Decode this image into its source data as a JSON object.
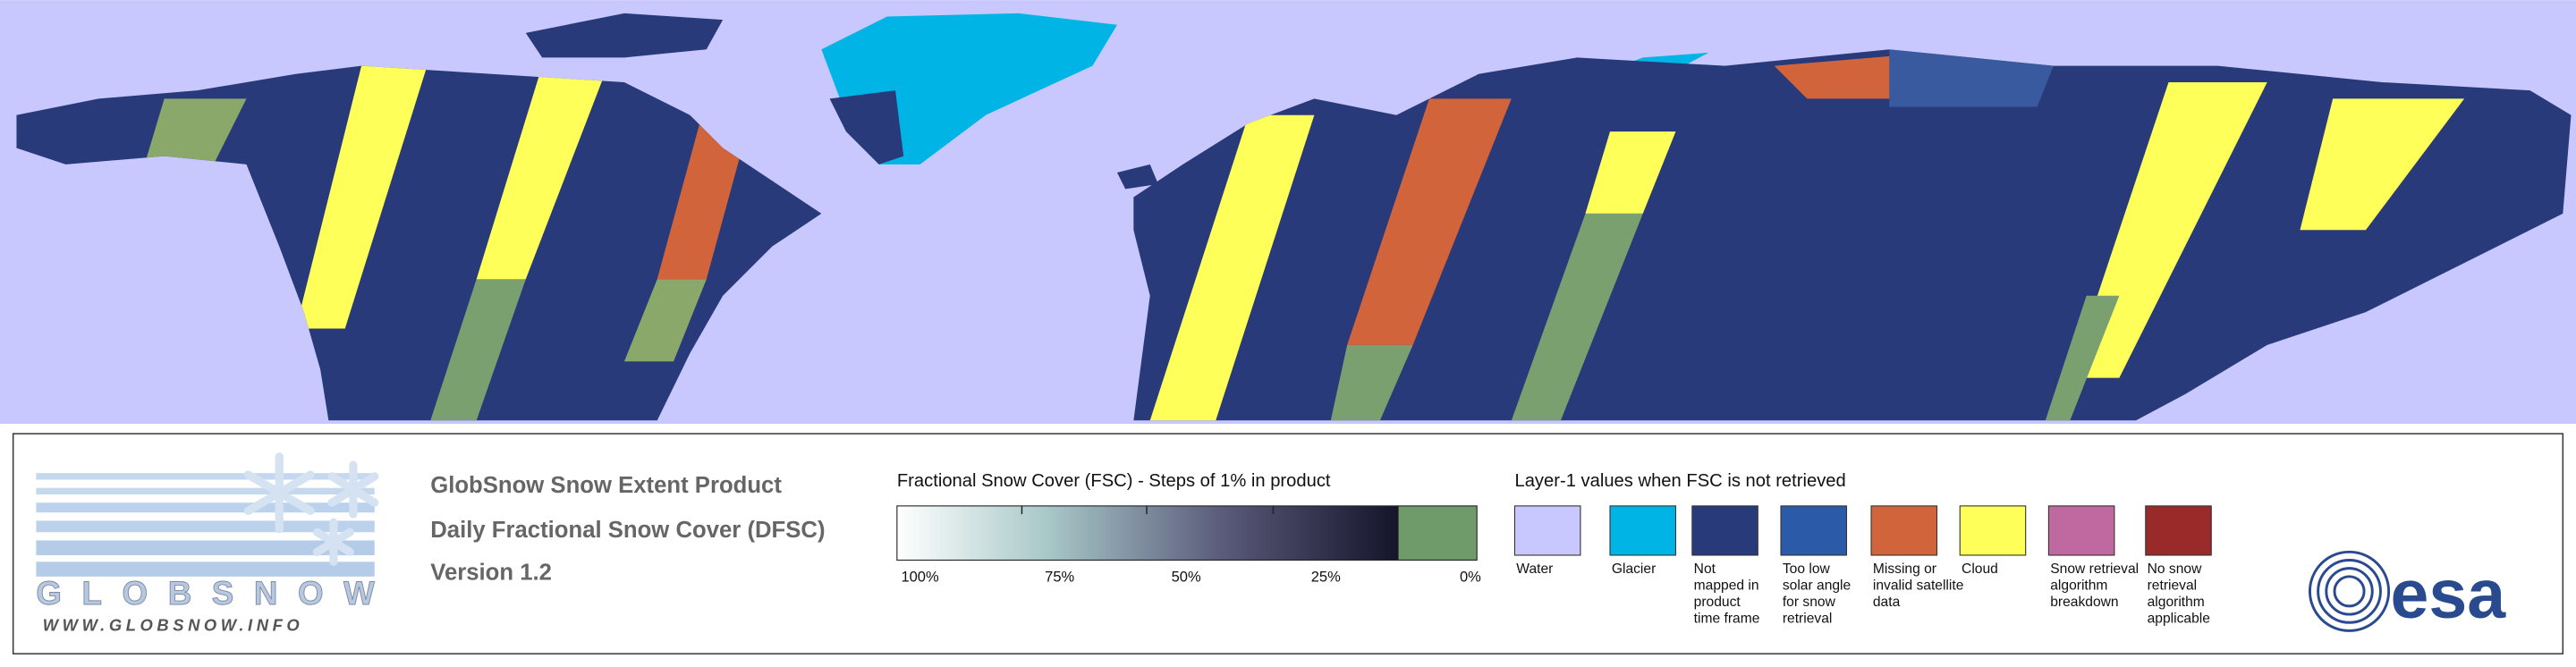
{
  "logo": {
    "name": "GLOBSNOW",
    "url": "WWW.GLOBSNOW.INFO"
  },
  "header": {
    "lines": [
      "GlobSnow Snow Extent Product",
      "Daily Fractional Snow Cover (DFSC)",
      "Version 1.2"
    ]
  },
  "colorbar": {
    "title": "Fractional Snow Cover (FSC) - Steps of 1% in product",
    "tick_labels": [
      "100%",
      "75%",
      "50%",
      "25%",
      "0%"
    ]
  },
  "legend": {
    "title": "Layer-1 values when FSC is not retrieved",
    "items": [
      {
        "label": [
          "Water"
        ],
        "color": "#c8c8ff"
      },
      {
        "label": [
          "Glacier"
        ],
        "color": "#00b4e6"
      },
      {
        "label": [
          "Not",
          "mapped in",
          "product",
          "time frame"
        ],
        "color": "#283a7a"
      },
      {
        "label": [
          "Too low",
          "solar angle",
          "for snow",
          "retrieval"
        ],
        "color": "#2a5aa8"
      },
      {
        "label": [
          "Missing or",
          "invalid satellite",
          "data"
        ],
        "color": "#d2643c"
      },
      {
        "label": [
          "Cloud"
        ],
        "color": "#ffff5a"
      },
      {
        "label": [
          "Snow retrieval",
          "algorithm",
          "breakdown"
        ],
        "color": "#c068a0"
      },
      {
        "label": [
          "No snow",
          "retrieval",
          "algorithm",
          "applicable"
        ],
        "color": "#9a2a2a"
      }
    ]
  },
  "esa_logo": "esa"
}
